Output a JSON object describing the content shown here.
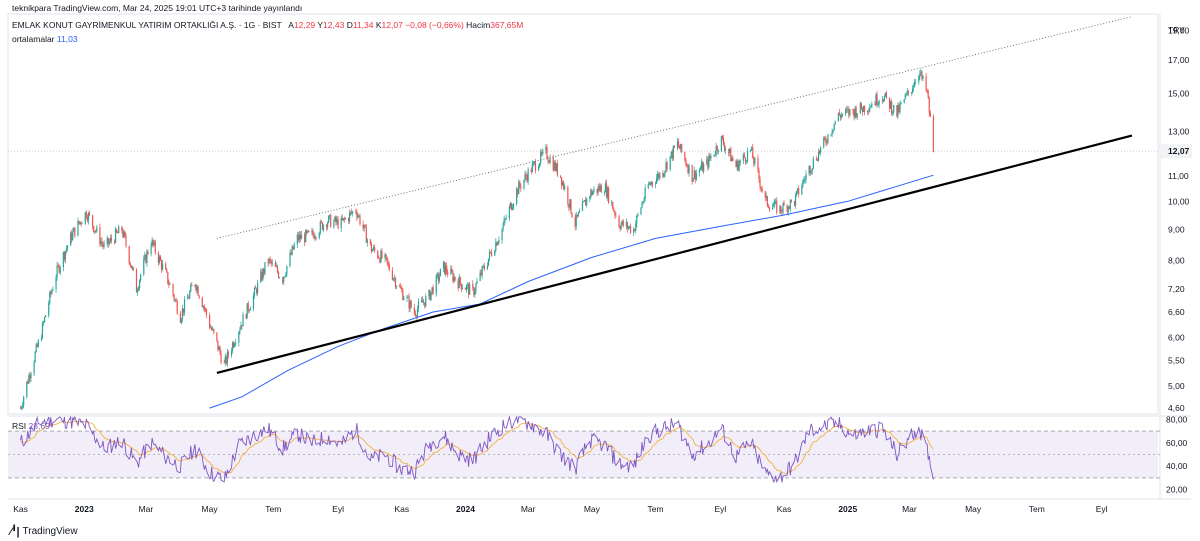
{
  "header": {
    "published": "teknikpara TradingView.com, Mar 24, 2025 19:01 UTC+3 tarihinde yayınlandı",
    "symbol": "EMLAK KONUT GAYRİMENKUL YATIRIM ORTAKLIĞI A.Ş. · 1G · BIST",
    "open_label": "A",
    "open": "12,29",
    "high_label": "Y",
    "high": "12,43",
    "low_label": "D",
    "low": "11,34",
    "close_label": "K",
    "close": "12,07",
    "change": "−0,08 (−0,66%)",
    "volume_label": "Hacim",
    "volume": "367,65M",
    "ma_label": "ortalamalar",
    "ma_value": "11,03"
  },
  "rsi": {
    "label": "RSI",
    "value": "28,69"
  },
  "brand": {
    "name": "TradingView"
  },
  "chart_data": {
    "type": "candlestick",
    "currency": "TRY",
    "last_price": 12.07,
    "last_price_label": "12,07",
    "price_axis": [
      "19,00",
      "17,00",
      "15,00",
      "13,00",
      "11,00",
      "10,00",
      "9,00",
      "8,00",
      "7,20",
      "6,60",
      "6,00",
      "5,50",
      "5,00",
      "4,60"
    ],
    "price_axis_values": [
      19.0,
      17.0,
      15.0,
      13.0,
      11.0,
      10.0,
      9.0,
      8.0,
      7.2,
      6.6,
      6.0,
      5.5,
      5.0,
      4.6
    ],
    "time_axis": [
      "Kas",
      "2023",
      "Mar",
      "May",
      "Tem",
      "Eyl",
      "Kas",
      "2024",
      "Mar",
      "May",
      "Tem",
      "Eyl",
      "Kas",
      "2025",
      "Mar",
      "May",
      "Tem",
      "Eyl"
    ],
    "time_axis_bold": [
      "2023",
      "2024",
      "2025"
    ],
    "close_path": [
      [
        "2022-11-01",
        4.6
      ],
      [
        "2022-11-20",
        6.0
      ],
      [
        "2022-12-05",
        7.6
      ],
      [
        "2022-12-20",
        8.8
      ],
      [
        "2023-01-03",
        9.6
      ],
      [
        "2023-01-20",
        8.4
      ],
      [
        "2023-02-06",
        9.0
      ],
      [
        "2023-02-20",
        7.2
      ],
      [
        "2023-03-06",
        8.6
      ],
      [
        "2023-03-20",
        7.6
      ],
      [
        "2023-04-03",
        6.5
      ],
      [
        "2023-04-17",
        7.4
      ],
      [
        "2023-05-01",
        6.3
      ],
      [
        "2023-05-15",
        5.4
      ],
      [
        "2023-05-29",
        6.2
      ],
      [
        "2023-06-12",
        7.0
      ],
      [
        "2023-06-26",
        8.0
      ],
      [
        "2023-07-10",
        7.5
      ],
      [
        "2023-07-24",
        8.7
      ],
      [
        "2023-08-07",
        8.8
      ],
      [
        "2023-08-21",
        9.3
      ],
      [
        "2023-09-04",
        9.2
      ],
      [
        "2023-09-18",
        9.7
      ],
      [
        "2023-10-02",
        8.4
      ],
      [
        "2023-10-16",
        8.0
      ],
      [
        "2023-10-30",
        7.2
      ],
      [
        "2023-11-13",
        6.6
      ],
      [
        "2023-11-27",
        7.0
      ],
      [
        "2023-12-11",
        7.8
      ],
      [
        "2023-12-25",
        7.4
      ],
      [
        "2024-01-08",
        7.1
      ],
      [
        "2024-01-22",
        8.0
      ],
      [
        "2024-02-05",
        9.0
      ],
      [
        "2024-02-19",
        10.4
      ],
      [
        "2024-03-04",
        11.3
      ],
      [
        "2024-03-18",
        12.0
      ],
      [
        "2024-04-01",
        11.0
      ],
      [
        "2024-04-15",
        9.2
      ],
      [
        "2024-04-29",
        10.3
      ],
      [
        "2024-05-13",
        10.6
      ],
      [
        "2024-05-27",
        9.2
      ],
      [
        "2024-06-10",
        9.0
      ],
      [
        "2024-06-24",
        10.6
      ],
      [
        "2024-07-08",
        11.2
      ],
      [
        "2024-07-22",
        12.4
      ],
      [
        "2024-08-05",
        11.0
      ],
      [
        "2024-08-19",
        11.5
      ],
      [
        "2024-09-02",
        12.6
      ],
      [
        "2024-09-16",
        11.4
      ],
      [
        "2024-09-30",
        12.1
      ],
      [
        "2024-10-14",
        10.0
      ],
      [
        "2024-10-28",
        9.7
      ],
      [
        "2024-11-11",
        10.0
      ],
      [
        "2024-11-25",
        11.3
      ],
      [
        "2024-12-09",
        12.4
      ],
      [
        "2024-12-23",
        13.8
      ],
      [
        "2025-01-06",
        14.0
      ],
      [
        "2025-01-20",
        14.3
      ],
      [
        "2025-02-03",
        14.9
      ],
      [
        "2025-02-17",
        13.9
      ],
      [
        "2025-03-03",
        15.3
      ],
      [
        "2025-03-10",
        16.3
      ],
      [
        "2025-03-18",
        15.0
      ],
      [
        "2025-03-24",
        12.07
      ]
    ],
    "moving_average": [
      [
        "2023-05-01",
        4.6
      ],
      [
        "2023-06-01",
        4.8
      ],
      [
        "2023-07-15",
        5.3
      ],
      [
        "2023-09-01",
        5.8
      ],
      [
        "2023-10-15",
        6.2
      ],
      [
        "2023-12-01",
        6.6
      ],
      [
        "2024-01-15",
        6.8
      ],
      [
        "2024-03-01",
        7.4
      ],
      [
        "2024-05-01",
        8.1
      ],
      [
        "2024-07-01",
        8.7
      ],
      [
        "2024-09-01",
        9.1
      ],
      [
        "2024-11-01",
        9.5
      ],
      [
        "2025-01-01",
        10.0
      ],
      [
        "2025-03-24",
        11.03
      ]
    ],
    "trendlines": [
      {
        "name": "support",
        "style": "solid",
        "from": [
          "2023-05-08",
          5.25
        ],
        "to": [
          "2025-09-30",
          12.8
        ]
      },
      {
        "name": "upper-channel",
        "style": "dotted",
        "from": [
          "2023-05-08",
          8.7
        ],
        "to": [
          "2025-09-30",
          20.0
        ]
      }
    ],
    "rsi": {
      "value": 28.69,
      "levels": [
        70,
        50,
        30
      ],
      "axis": [
        "80,00",
        "60,00",
        "40,00",
        "20,00"
      ],
      "axis_values": [
        80,
        60,
        40,
        20
      ],
      "path": [
        [
          "2022-11-01",
          60
        ],
        [
          "2022-11-20",
          78
        ],
        [
          "2022-12-05",
          80
        ],
        [
          "2022-12-20",
          78
        ],
        [
          "2023-01-03",
          75
        ],
        [
          "2023-01-20",
          55
        ],
        [
          "2023-02-06",
          62
        ],
        [
          "2023-02-20",
          42
        ],
        [
          "2023-03-06",
          60
        ],
        [
          "2023-03-20",
          48
        ],
        [
          "2023-04-03",
          40
        ],
        [
          "2023-04-17",
          55
        ],
        [
          "2023-05-01",
          35
        ],
        [
          "2023-05-15",
          28
        ],
        [
          "2023-05-29",
          58
        ],
        [
          "2023-06-12",
          66
        ],
        [
          "2023-06-26",
          72
        ],
        [
          "2023-07-10",
          55
        ],
        [
          "2023-07-24",
          68
        ],
        [
          "2023-08-07",
          60
        ],
        [
          "2023-08-21",
          65
        ],
        [
          "2023-09-04",
          58
        ],
        [
          "2023-09-18",
          72
        ],
        [
          "2023-10-02",
          45
        ],
        [
          "2023-10-16",
          50
        ],
        [
          "2023-10-30",
          38
        ],
        [
          "2023-11-13",
          36
        ],
        [
          "2023-11-27",
          58
        ],
        [
          "2023-12-11",
          66
        ],
        [
          "2023-12-25",
          50
        ],
        [
          "2024-01-08",
          45
        ],
        [
          "2024-01-22",
          62
        ],
        [
          "2024-02-05",
          74
        ],
        [
          "2024-02-19",
          80
        ],
        [
          "2024-03-04",
          76
        ],
        [
          "2024-03-18",
          68
        ],
        [
          "2024-04-01",
          50
        ],
        [
          "2024-04-15",
          38
        ],
        [
          "2024-04-29",
          62
        ],
        [
          "2024-05-13",
          58
        ],
        [
          "2024-05-27",
          42
        ],
        [
          "2024-06-10",
          40
        ],
        [
          "2024-06-24",
          66
        ],
        [
          "2024-07-08",
          72
        ],
        [
          "2024-07-22",
          76
        ],
        [
          "2024-08-05",
          50
        ],
        [
          "2024-08-19",
          58
        ],
        [
          "2024-09-02",
          72
        ],
        [
          "2024-09-16",
          48
        ],
        [
          "2024-09-30",
          60
        ],
        [
          "2024-10-14",
          34
        ],
        [
          "2024-10-28",
          30
        ],
        [
          "2024-11-11",
          42
        ],
        [
          "2024-11-25",
          70
        ],
        [
          "2024-12-09",
          74
        ],
        [
          "2024-12-23",
          76
        ],
        [
          "2025-01-06",
          66
        ],
        [
          "2025-01-20",
          70
        ],
        [
          "2025-02-03",
          72
        ],
        [
          "2025-02-17",
          50
        ],
        [
          "2025-03-03",
          66
        ],
        [
          "2025-03-10",
          74
        ],
        [
          "2025-03-18",
          52
        ],
        [
          "2025-03-24",
          28.69
        ]
      ]
    },
    "x_range": [
      "2022-10-20",
      "2025-10-25"
    ]
  }
}
